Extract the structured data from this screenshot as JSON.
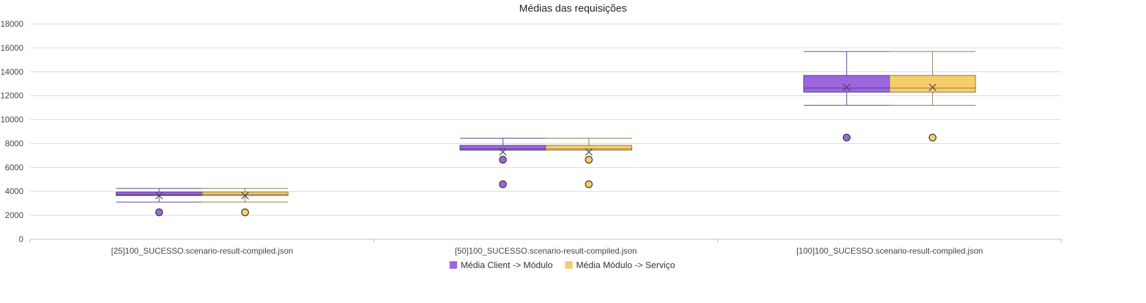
{
  "chart_data": {
    "type": "box",
    "title": "Médias das requisições",
    "xlabel": "",
    "ylabel": "",
    "ylim": [
      0,
      18000
    ],
    "yticks": [
      0,
      2000,
      4000,
      6000,
      8000,
      10000,
      12000,
      14000,
      16000,
      18000
    ],
    "grid": true,
    "legend_position": "bottom",
    "categories": [
      "[25]100_SUCESSO.scenario-result-compiled.json",
      "[50]100_SUCESSO.scenario-result-compiled.json",
      "[100]100_SUCESSO.scenario-result-compiled.json"
    ],
    "series": [
      {
        "name": "Média Client -> Módulo",
        "color": "#9b66e0",
        "stats": [
          {
            "min": 3100,
            "q1": 3650,
            "median": 3750,
            "q3": 3950,
            "max": 4250,
            "mean": 3650,
            "outliers": [
              2250
            ]
          },
          {
            "min": 7450,
            "q1": 7450,
            "median": 7550,
            "q3": 7850,
            "max": 8450,
            "mean": 7300,
            "outliers": [
              6650,
              4600
            ]
          },
          {
            "min": 11200,
            "q1": 12300,
            "median": 12650,
            "q3": 13700,
            "max": 15700,
            "mean": 12700,
            "outliers": [
              8500
            ]
          }
        ]
      },
      {
        "name": "Média Módulo -> Serviço",
        "color": "#f7cd6b",
        "stats": [
          {
            "min": 3100,
            "q1": 3650,
            "median": 3750,
            "q3": 3950,
            "max": 4250,
            "mean": 3650,
            "outliers": [
              2250
            ]
          },
          {
            "min": 7450,
            "q1": 7450,
            "median": 7550,
            "q3": 7850,
            "max": 8450,
            "mean": 7300,
            "outliers": [
              6650,
              4600
            ]
          },
          {
            "min": 11200,
            "q1": 12300,
            "median": 12650,
            "q3": 13700,
            "max": 15700,
            "mean": 12700,
            "outliers": [
              8500
            ]
          }
        ]
      }
    ]
  }
}
